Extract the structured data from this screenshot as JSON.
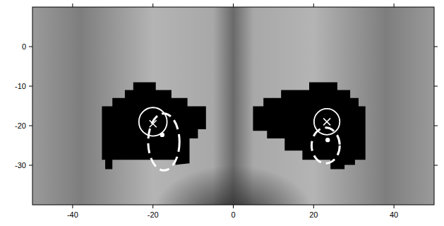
{
  "chart_data": {
    "type": "scatter",
    "xlim": [
      -50,
      50
    ],
    "ylim": [
      -40,
      10
    ],
    "xticks": [
      -40,
      -20,
      0,
      20,
      40
    ],
    "yticks": [
      -30,
      -20,
      -10,
      0
    ],
    "grid": false,
    "regions": [
      {
        "color": "#000000",
        "x": [
          -24.9,
          -19.3,
          -19.3,
          -15.4,
          -15.4,
          -11.4,
          -11.4,
          -6.8,
          -6.8,
          -8.8,
          -8.8,
          -10.9,
          -10.9,
          -14.4,
          -14.4,
          -30.1,
          -30.1,
          -31.9,
          -31.9,
          -32.7,
          -32.7,
          -30.1,
          -30.1,
          -27.0,
          -27.0,
          -24.9
        ],
        "values": [
          -9,
          -9,
          -11,
          -11,
          -13,
          -13,
          -15.1,
          -15.1,
          -20.9,
          -20.9,
          -23.2,
          -23.2,
          -29.5,
          -29.9,
          -28.6,
          -28.6,
          -31,
          -31,
          -28.6,
          -28.6,
          -15.1,
          -15.1,
          -13,
          -13,
          -11,
          -11
        ]
      },
      {
        "color": "#000000",
        "x": [
          18.9,
          25.9,
          25.9,
          29.1,
          29.1,
          31.2,
          31.2,
          32.9,
          32.9,
          30.3,
          30.3,
          27.7,
          27.7,
          24.2,
          24.2,
          17.2,
          17.2,
          12.8,
          12.8,
          8.4,
          8.4,
          4.9,
          4.9,
          7.5,
          7.5,
          11.9,
          11.9,
          18.9
        ],
        "values": [
          -9,
          -9,
          -11,
          -11,
          -13,
          -13,
          -15.1,
          -15.1,
          -28.6,
          -28.6,
          -29.9,
          -29.9,
          -31,
          -31,
          -28.6,
          -28.6,
          -26.3,
          -26.3,
          -23.2,
          -23.2,
          -21.3,
          -21.3,
          -15.1,
          -15.1,
          -13,
          -13,
          -11,
          -11
        ]
      }
    ],
    "ellipses": [
      {
        "x": -20,
        "y": -19,
        "rx": 3.5,
        "ry": 3.6,
        "line_style": "solid",
        "color": "#ffffff"
      },
      {
        "x": 23.3,
        "y": -19,
        "rx": 3.2,
        "ry": 3.3,
        "line_style": "solid",
        "color": "#ffffff"
      },
      {
        "x": -17.3,
        "y": -24.1,
        "rx": 3.9,
        "ry": 7.2,
        "line_style": "dashed",
        "color": "#ffffff"
      },
      {
        "x": 23,
        "y": -25,
        "rx": 3.5,
        "ry": 4.5,
        "line_style": "dashed",
        "color": "#ffffff"
      }
    ],
    "series": [
      {
        "marker": "x",
        "color": "#ffffff",
        "x": [
          -20,
          23.3
        ],
        "values": [
          -19.5,
          -19
        ]
      },
      {
        "marker": "dot",
        "color": "#ffffff",
        "x": [
          -17.7,
          23.5
        ],
        "values": [
          -22.3,
          -23.6
        ]
      }
    ]
  }
}
